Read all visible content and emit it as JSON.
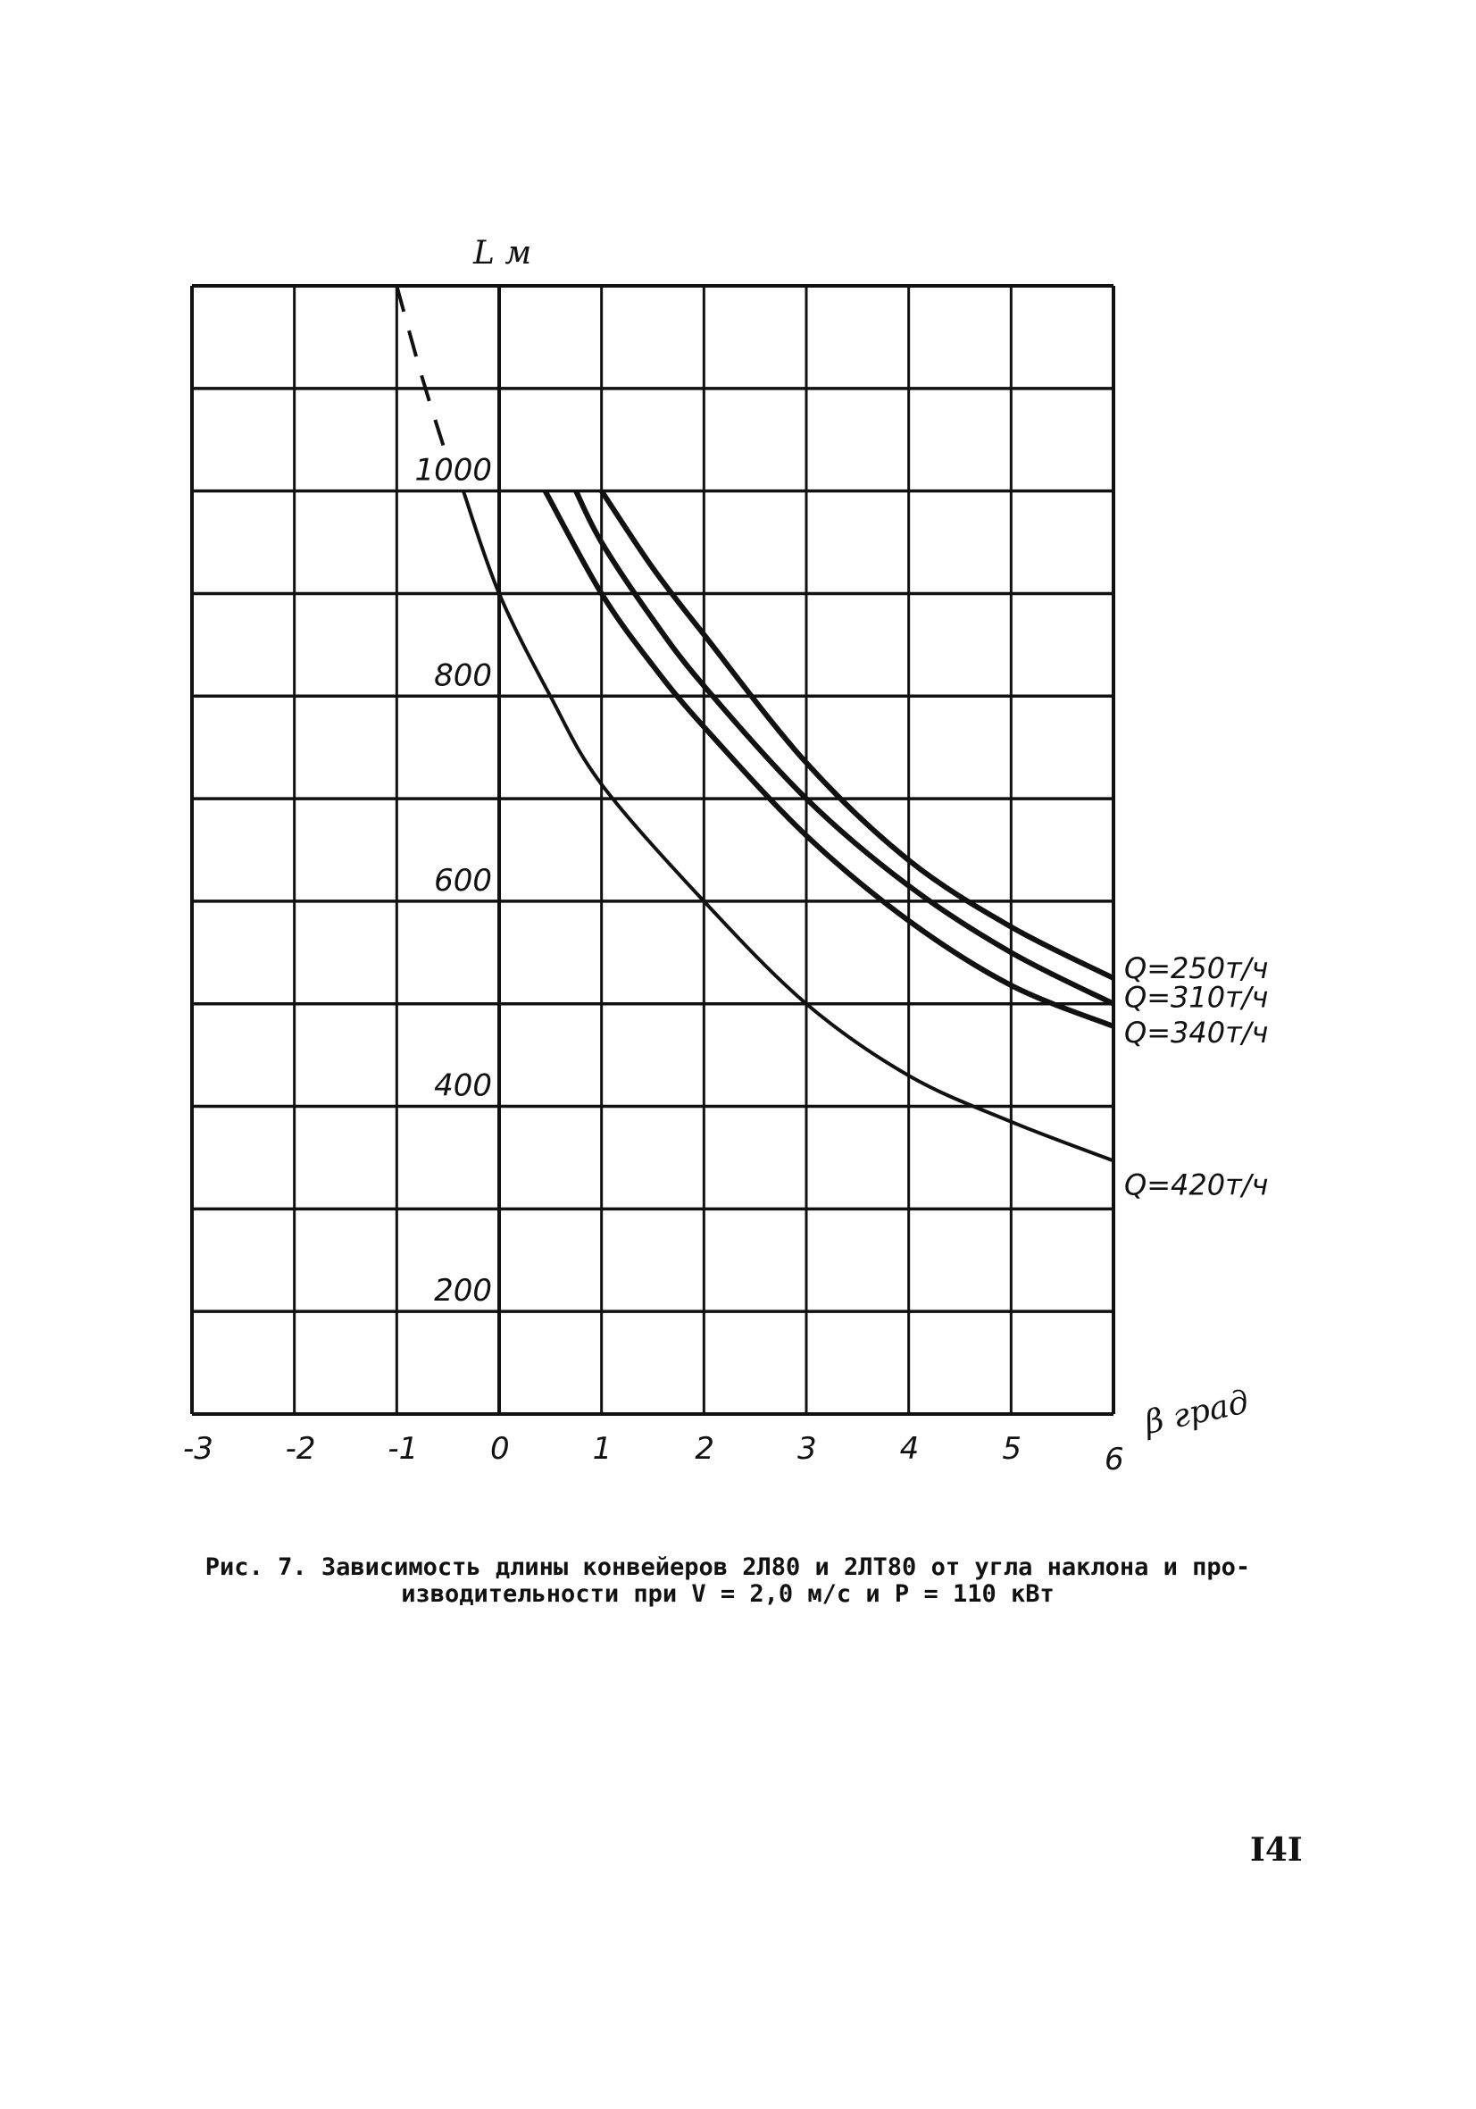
{
  "chart_data": {
    "type": "line",
    "title": "",
    "xlabel": "β град",
    "ylabel": "L м",
    "xlim": [
      -3,
      6
    ],
    "ylim": [
      100,
      1200
    ],
    "grid": true,
    "x_ticks": [
      "-3",
      "-2",
      "-1",
      "0",
      "1",
      "2",
      "3",
      "4",
      "5",
      "6"
    ],
    "y_ticks": [
      {
        "value": 1000,
        "label": "1000"
      },
      {
        "value": 800,
        "label": "800"
      },
      {
        "value": 600,
        "label": "600"
      },
      {
        "value": 400,
        "label": "400"
      },
      {
        "value": 200,
        "label": "200"
      }
    ],
    "series": [
      {
        "name": "Q=250т/ч",
        "style": "solid",
        "points": [
          [
            1,
            1000
          ],
          [
            1.5,
            925
          ],
          [
            2,
            860
          ],
          [
            3,
            735
          ],
          [
            4,
            640
          ],
          [
            5,
            575
          ],
          [
            6,
            525
          ]
        ]
      },
      {
        "name": "Q=310т/ч",
        "style": "solid",
        "points": [
          [
            0.75,
            1000
          ],
          [
            1,
            950
          ],
          [
            1.5,
            875
          ],
          [
            2,
            810
          ],
          [
            3,
            700
          ],
          [
            4,
            615
          ],
          [
            5,
            550
          ],
          [
            6,
            500
          ]
        ]
      },
      {
        "name": "Q=340т/ч",
        "style": "solid",
        "points": [
          [
            0.45,
            1000
          ],
          [
            1,
            900
          ],
          [
            1.5,
            830
          ],
          [
            2,
            770
          ],
          [
            3,
            664
          ],
          [
            4,
            581
          ],
          [
            5,
            518
          ],
          [
            6,
            478
          ]
        ]
      },
      {
        "name": "Q=420т/ч",
        "style": "solid",
        "points": [
          [
            -0.35,
            1000
          ],
          [
            0,
            900
          ],
          [
            0.5,
            800
          ],
          [
            1,
            714
          ],
          [
            2,
            600
          ],
          [
            3,
            500
          ],
          [
            4,
            430
          ],
          [
            5,
            385
          ],
          [
            6,
            347
          ]
        ]
      },
      {
        "name": "",
        "style": "dashed",
        "points": [
          [
            -1,
            1200
          ],
          [
            -0.75,
            1110
          ],
          [
            -0.5,
            1030
          ]
        ]
      }
    ]
  },
  "caption": {
    "line1": "Рис. 7. Зависимость длины конвейеров 2Л80 и 2ЛТ80 от угла наклона и про-",
    "line2": "изводительности при V = 2,0 м/с и P = 110 кВт"
  },
  "page_number": "I4I"
}
